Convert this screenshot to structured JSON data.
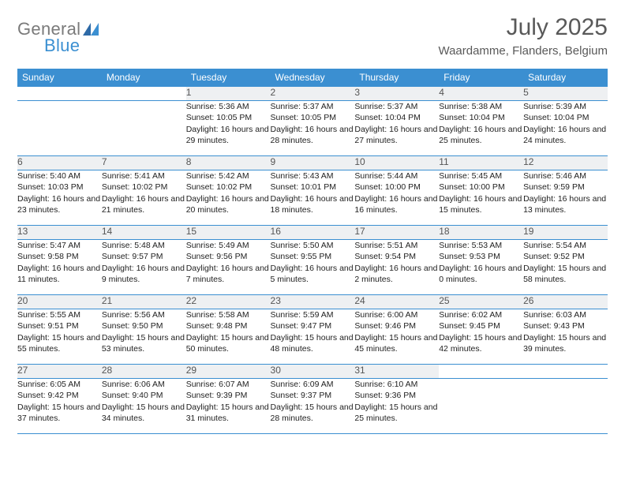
{
  "logo": {
    "general": "General",
    "blue": "Blue"
  },
  "title": "July 2025",
  "location": "Waardamme, Flanders, Belgium",
  "colors": {
    "header_bg": "#3b8fd1",
    "header_fg": "#ffffff",
    "daynum_bg": "#eef0f2",
    "border": "#3b8fd1",
    "title_color": "#595959",
    "text_color": "#222222"
  },
  "weekdays": [
    "Sunday",
    "Monday",
    "Tuesday",
    "Wednesday",
    "Thursday",
    "Friday",
    "Saturday"
  ],
  "weeks": [
    [
      null,
      null,
      {
        "n": "1",
        "sunrise": "5:36 AM",
        "sunset": "10:05 PM",
        "daylight": "16 hours and 29 minutes."
      },
      {
        "n": "2",
        "sunrise": "5:37 AM",
        "sunset": "10:05 PM",
        "daylight": "16 hours and 28 minutes."
      },
      {
        "n": "3",
        "sunrise": "5:37 AM",
        "sunset": "10:04 PM",
        "daylight": "16 hours and 27 minutes."
      },
      {
        "n": "4",
        "sunrise": "5:38 AM",
        "sunset": "10:04 PM",
        "daylight": "16 hours and 25 minutes."
      },
      {
        "n": "5",
        "sunrise": "5:39 AM",
        "sunset": "10:04 PM",
        "daylight": "16 hours and 24 minutes."
      }
    ],
    [
      {
        "n": "6",
        "sunrise": "5:40 AM",
        "sunset": "10:03 PM",
        "daylight": "16 hours and 23 minutes."
      },
      {
        "n": "7",
        "sunrise": "5:41 AM",
        "sunset": "10:02 PM",
        "daylight": "16 hours and 21 minutes."
      },
      {
        "n": "8",
        "sunrise": "5:42 AM",
        "sunset": "10:02 PM",
        "daylight": "16 hours and 20 minutes."
      },
      {
        "n": "9",
        "sunrise": "5:43 AM",
        "sunset": "10:01 PM",
        "daylight": "16 hours and 18 minutes."
      },
      {
        "n": "10",
        "sunrise": "5:44 AM",
        "sunset": "10:00 PM",
        "daylight": "16 hours and 16 minutes."
      },
      {
        "n": "11",
        "sunrise": "5:45 AM",
        "sunset": "10:00 PM",
        "daylight": "16 hours and 15 minutes."
      },
      {
        "n": "12",
        "sunrise": "5:46 AM",
        "sunset": "9:59 PM",
        "daylight": "16 hours and 13 minutes."
      }
    ],
    [
      {
        "n": "13",
        "sunrise": "5:47 AM",
        "sunset": "9:58 PM",
        "daylight": "16 hours and 11 minutes."
      },
      {
        "n": "14",
        "sunrise": "5:48 AM",
        "sunset": "9:57 PM",
        "daylight": "16 hours and 9 minutes."
      },
      {
        "n": "15",
        "sunrise": "5:49 AM",
        "sunset": "9:56 PM",
        "daylight": "16 hours and 7 minutes."
      },
      {
        "n": "16",
        "sunrise": "5:50 AM",
        "sunset": "9:55 PM",
        "daylight": "16 hours and 5 minutes."
      },
      {
        "n": "17",
        "sunrise": "5:51 AM",
        "sunset": "9:54 PM",
        "daylight": "16 hours and 2 minutes."
      },
      {
        "n": "18",
        "sunrise": "5:53 AM",
        "sunset": "9:53 PM",
        "daylight": "16 hours and 0 minutes."
      },
      {
        "n": "19",
        "sunrise": "5:54 AM",
        "sunset": "9:52 PM",
        "daylight": "15 hours and 58 minutes."
      }
    ],
    [
      {
        "n": "20",
        "sunrise": "5:55 AM",
        "sunset": "9:51 PM",
        "daylight": "15 hours and 55 minutes."
      },
      {
        "n": "21",
        "sunrise": "5:56 AM",
        "sunset": "9:50 PM",
        "daylight": "15 hours and 53 minutes."
      },
      {
        "n": "22",
        "sunrise": "5:58 AM",
        "sunset": "9:48 PM",
        "daylight": "15 hours and 50 minutes."
      },
      {
        "n": "23",
        "sunrise": "5:59 AM",
        "sunset": "9:47 PM",
        "daylight": "15 hours and 48 minutes."
      },
      {
        "n": "24",
        "sunrise": "6:00 AM",
        "sunset": "9:46 PM",
        "daylight": "15 hours and 45 minutes."
      },
      {
        "n": "25",
        "sunrise": "6:02 AM",
        "sunset": "9:45 PM",
        "daylight": "15 hours and 42 minutes."
      },
      {
        "n": "26",
        "sunrise": "6:03 AM",
        "sunset": "9:43 PM",
        "daylight": "15 hours and 39 minutes."
      }
    ],
    [
      {
        "n": "27",
        "sunrise": "6:05 AM",
        "sunset": "9:42 PM",
        "daylight": "15 hours and 37 minutes."
      },
      {
        "n": "28",
        "sunrise": "6:06 AM",
        "sunset": "9:40 PM",
        "daylight": "15 hours and 34 minutes."
      },
      {
        "n": "29",
        "sunrise": "6:07 AM",
        "sunset": "9:39 PM",
        "daylight": "15 hours and 31 minutes."
      },
      {
        "n": "30",
        "sunrise": "6:09 AM",
        "sunset": "9:37 PM",
        "daylight": "15 hours and 28 minutes."
      },
      {
        "n": "31",
        "sunrise": "6:10 AM",
        "sunset": "9:36 PM",
        "daylight": "15 hours and 25 minutes."
      },
      null,
      null
    ]
  ],
  "labels": {
    "sunrise": "Sunrise:",
    "sunset": "Sunset:",
    "daylight": "Daylight:"
  }
}
